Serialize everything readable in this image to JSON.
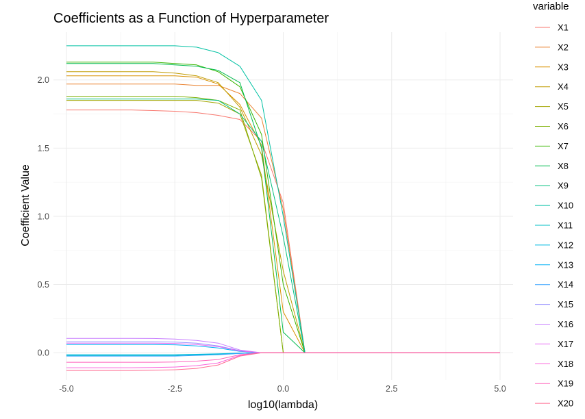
{
  "chart_data": {
    "type": "line",
    "title": "Coefficients as a Function of Hyperparameter",
    "xlabel": "log10(lambda)",
    "ylabel": "Coefficient Value",
    "xlim": [
      -5.3,
      5.3
    ],
    "ylim": [
      -0.2,
      2.35
    ],
    "xticks": [
      -5.0,
      -2.5,
      0.0,
      2.5,
      5.0
    ],
    "xtick_labels": [
      "-5.0",
      "-2.5",
      "0.0",
      "2.5",
      "5.0"
    ],
    "yticks": [
      0.0,
      0.5,
      1.0,
      1.5,
      2.0
    ],
    "ytick_labels": [
      "0.0",
      "0.5",
      "1.0",
      "1.5",
      "2.0"
    ],
    "grid": true,
    "legend": {
      "title": "variable",
      "position": "right"
    },
    "x": [
      -5,
      -4.5,
      -4,
      -3.5,
      -3,
      -2.5,
      -2,
      -1.5,
      -1,
      -0.5,
      0,
      0.5,
      1,
      1.5,
      2,
      2.5,
      3,
      3.5,
      4,
      4.5,
      5
    ],
    "series": [
      {
        "name": "X1",
        "color": "#F8766D",
        "values": [
          1.78,
          1.78,
          1.78,
          1.78,
          1.775,
          1.77,
          1.76,
          1.74,
          1.71,
          1.55,
          1.1,
          0,
          0,
          0,
          0,
          0,
          0,
          0,
          0,
          0,
          0
        ]
      },
      {
        "name": "X2",
        "color": "#EA8331",
        "values": [
          1.97,
          1.97,
          1.97,
          1.97,
          1.97,
          1.97,
          1.96,
          1.96,
          1.9,
          1.72,
          1.05,
          0,
          0,
          0,
          0,
          0,
          0,
          0,
          0,
          0,
          0
        ]
      },
      {
        "name": "X3",
        "color": "#D89000",
        "values": [
          2.03,
          2.03,
          2.03,
          2.03,
          2.03,
          2.03,
          2.02,
          1.97,
          1.82,
          1.52,
          0.3,
          0,
          0,
          0,
          0,
          0,
          0,
          0,
          0,
          0,
          0
        ]
      },
      {
        "name": "X4",
        "color": "#C09B00",
        "values": [
          2.06,
          2.06,
          2.06,
          2.06,
          2.06,
          2.05,
          2.03,
          1.98,
          1.8,
          1.45,
          0.6,
          0,
          0,
          0,
          0,
          0,
          0,
          0,
          0,
          0,
          0
        ]
      },
      {
        "name": "X5",
        "color": "#A3A500",
        "values": [
          1.85,
          1.85,
          1.85,
          1.85,
          1.85,
          1.85,
          1.85,
          1.83,
          1.75,
          1.3,
          0,
          0,
          0,
          0,
          0,
          0,
          0,
          0,
          0,
          0,
          0
        ]
      },
      {
        "name": "X6",
        "color": "#7CAE00",
        "values": [
          1.88,
          1.88,
          1.88,
          1.88,
          1.88,
          1.88,
          1.87,
          1.85,
          1.78,
          1.28,
          0,
          0,
          0,
          0,
          0,
          0,
          0,
          0,
          0,
          0,
          0
        ]
      },
      {
        "name": "X7",
        "color": "#39B600",
        "values": [
          2.13,
          2.13,
          2.13,
          2.13,
          2.13,
          2.12,
          2.11,
          2.06,
          1.95,
          1.6,
          0.5,
          0,
          0,
          0,
          0,
          0,
          0,
          0,
          0,
          0,
          0
        ]
      },
      {
        "name": "X8",
        "color": "#00BB4E",
        "values": [
          2.12,
          2.12,
          2.12,
          2.12,
          2.12,
          2.11,
          2.1,
          2.07,
          1.98,
          1.5,
          0.15,
          0,
          0,
          0,
          0,
          0,
          0,
          0,
          0,
          0,
          0
        ]
      },
      {
        "name": "X9",
        "color": "#00BF7D",
        "values": [
          1.86,
          1.86,
          1.86,
          1.86,
          1.86,
          1.86,
          1.86,
          1.85,
          1.75,
          1.55,
          0.85,
          0,
          0,
          0,
          0,
          0,
          0,
          0,
          0,
          0,
          0
        ]
      },
      {
        "name": "X10",
        "color": "#00C1A3",
        "values": [
          2.25,
          2.25,
          2.25,
          2.25,
          2.25,
          2.25,
          2.24,
          2.2,
          2.1,
          1.85,
          1.0,
          0,
          0,
          0,
          0,
          0,
          0,
          0,
          0,
          0,
          0
        ]
      },
      {
        "name": "X11",
        "color": "#00BFC4",
        "values": [
          -0.02,
          -0.02,
          -0.02,
          -0.02,
          -0.02,
          -0.02,
          -0.015,
          -0.012,
          -0.005,
          0,
          0,
          0,
          0,
          0,
          0,
          0,
          0,
          0,
          0,
          0,
          0
        ]
      },
      {
        "name": "X12",
        "color": "#00BAE0",
        "values": [
          -0.015,
          -0.015,
          -0.015,
          -0.015,
          -0.015,
          -0.015,
          -0.012,
          -0.008,
          -0.003,
          0,
          0,
          0,
          0,
          0,
          0,
          0,
          0,
          0,
          0,
          0,
          0
        ]
      },
      {
        "name": "X13",
        "color": "#00B0F6",
        "values": [
          0.06,
          0.06,
          0.06,
          0.06,
          0.06,
          0.058,
          0.05,
          0.035,
          0.01,
          0,
          0,
          0,
          0,
          0,
          0,
          0,
          0,
          0,
          0,
          0,
          0
        ]
      },
      {
        "name": "X14",
        "color": "#35A2FF",
        "values": [
          -0.025,
          -0.025,
          -0.025,
          -0.025,
          -0.025,
          -0.025,
          -0.02,
          -0.015,
          -0.005,
          0,
          0,
          0,
          0,
          0,
          0,
          0,
          0,
          0,
          0,
          0,
          0
        ]
      },
      {
        "name": "X15",
        "color": "#9590FF",
        "values": [
          0.08,
          0.08,
          0.08,
          0.08,
          0.08,
          0.078,
          0.07,
          0.05,
          0.015,
          0,
          0,
          0,
          0,
          0,
          0,
          0,
          0,
          0,
          0,
          0,
          0
        ]
      },
      {
        "name": "X16",
        "color": "#C77CFF",
        "values": [
          0.105,
          0.105,
          0.105,
          0.105,
          0.104,
          0.1,
          0.09,
          0.07,
          0.02,
          0,
          0,
          0,
          0,
          0,
          0,
          0,
          0,
          0,
          0,
          0,
          0
        ]
      },
      {
        "name": "X17",
        "color": "#E76BF3",
        "values": [
          0.07,
          0.07,
          0.07,
          0.07,
          0.07,
          0.068,
          0.06,
          0.045,
          0.012,
          0,
          0,
          0,
          0,
          0,
          0,
          0,
          0,
          0,
          0,
          0,
          0
        ]
      },
      {
        "name": "X18",
        "color": "#FA62DB",
        "values": [
          -0.11,
          -0.11,
          -0.11,
          -0.11,
          -0.108,
          -0.105,
          -0.095,
          -0.075,
          -0.02,
          0,
          0,
          0,
          0,
          0,
          0,
          0,
          0,
          0,
          0,
          0,
          0
        ]
      },
      {
        "name": "X19",
        "color": "#FF62BC",
        "values": [
          -0.07,
          -0.07,
          -0.07,
          -0.07,
          -0.07,
          -0.068,
          -0.062,
          -0.05,
          -0.015,
          0,
          0,
          0,
          0,
          0,
          0,
          0,
          0,
          0,
          0,
          0,
          0
        ]
      },
      {
        "name": "X20",
        "color": "#FF6C91",
        "values": [
          -0.13,
          -0.13,
          -0.13,
          -0.13,
          -0.128,
          -0.125,
          -0.115,
          -0.09,
          -0.025,
          0,
          0,
          0,
          0,
          0,
          0,
          0,
          0,
          0,
          0,
          0,
          0
        ]
      }
    ]
  }
}
